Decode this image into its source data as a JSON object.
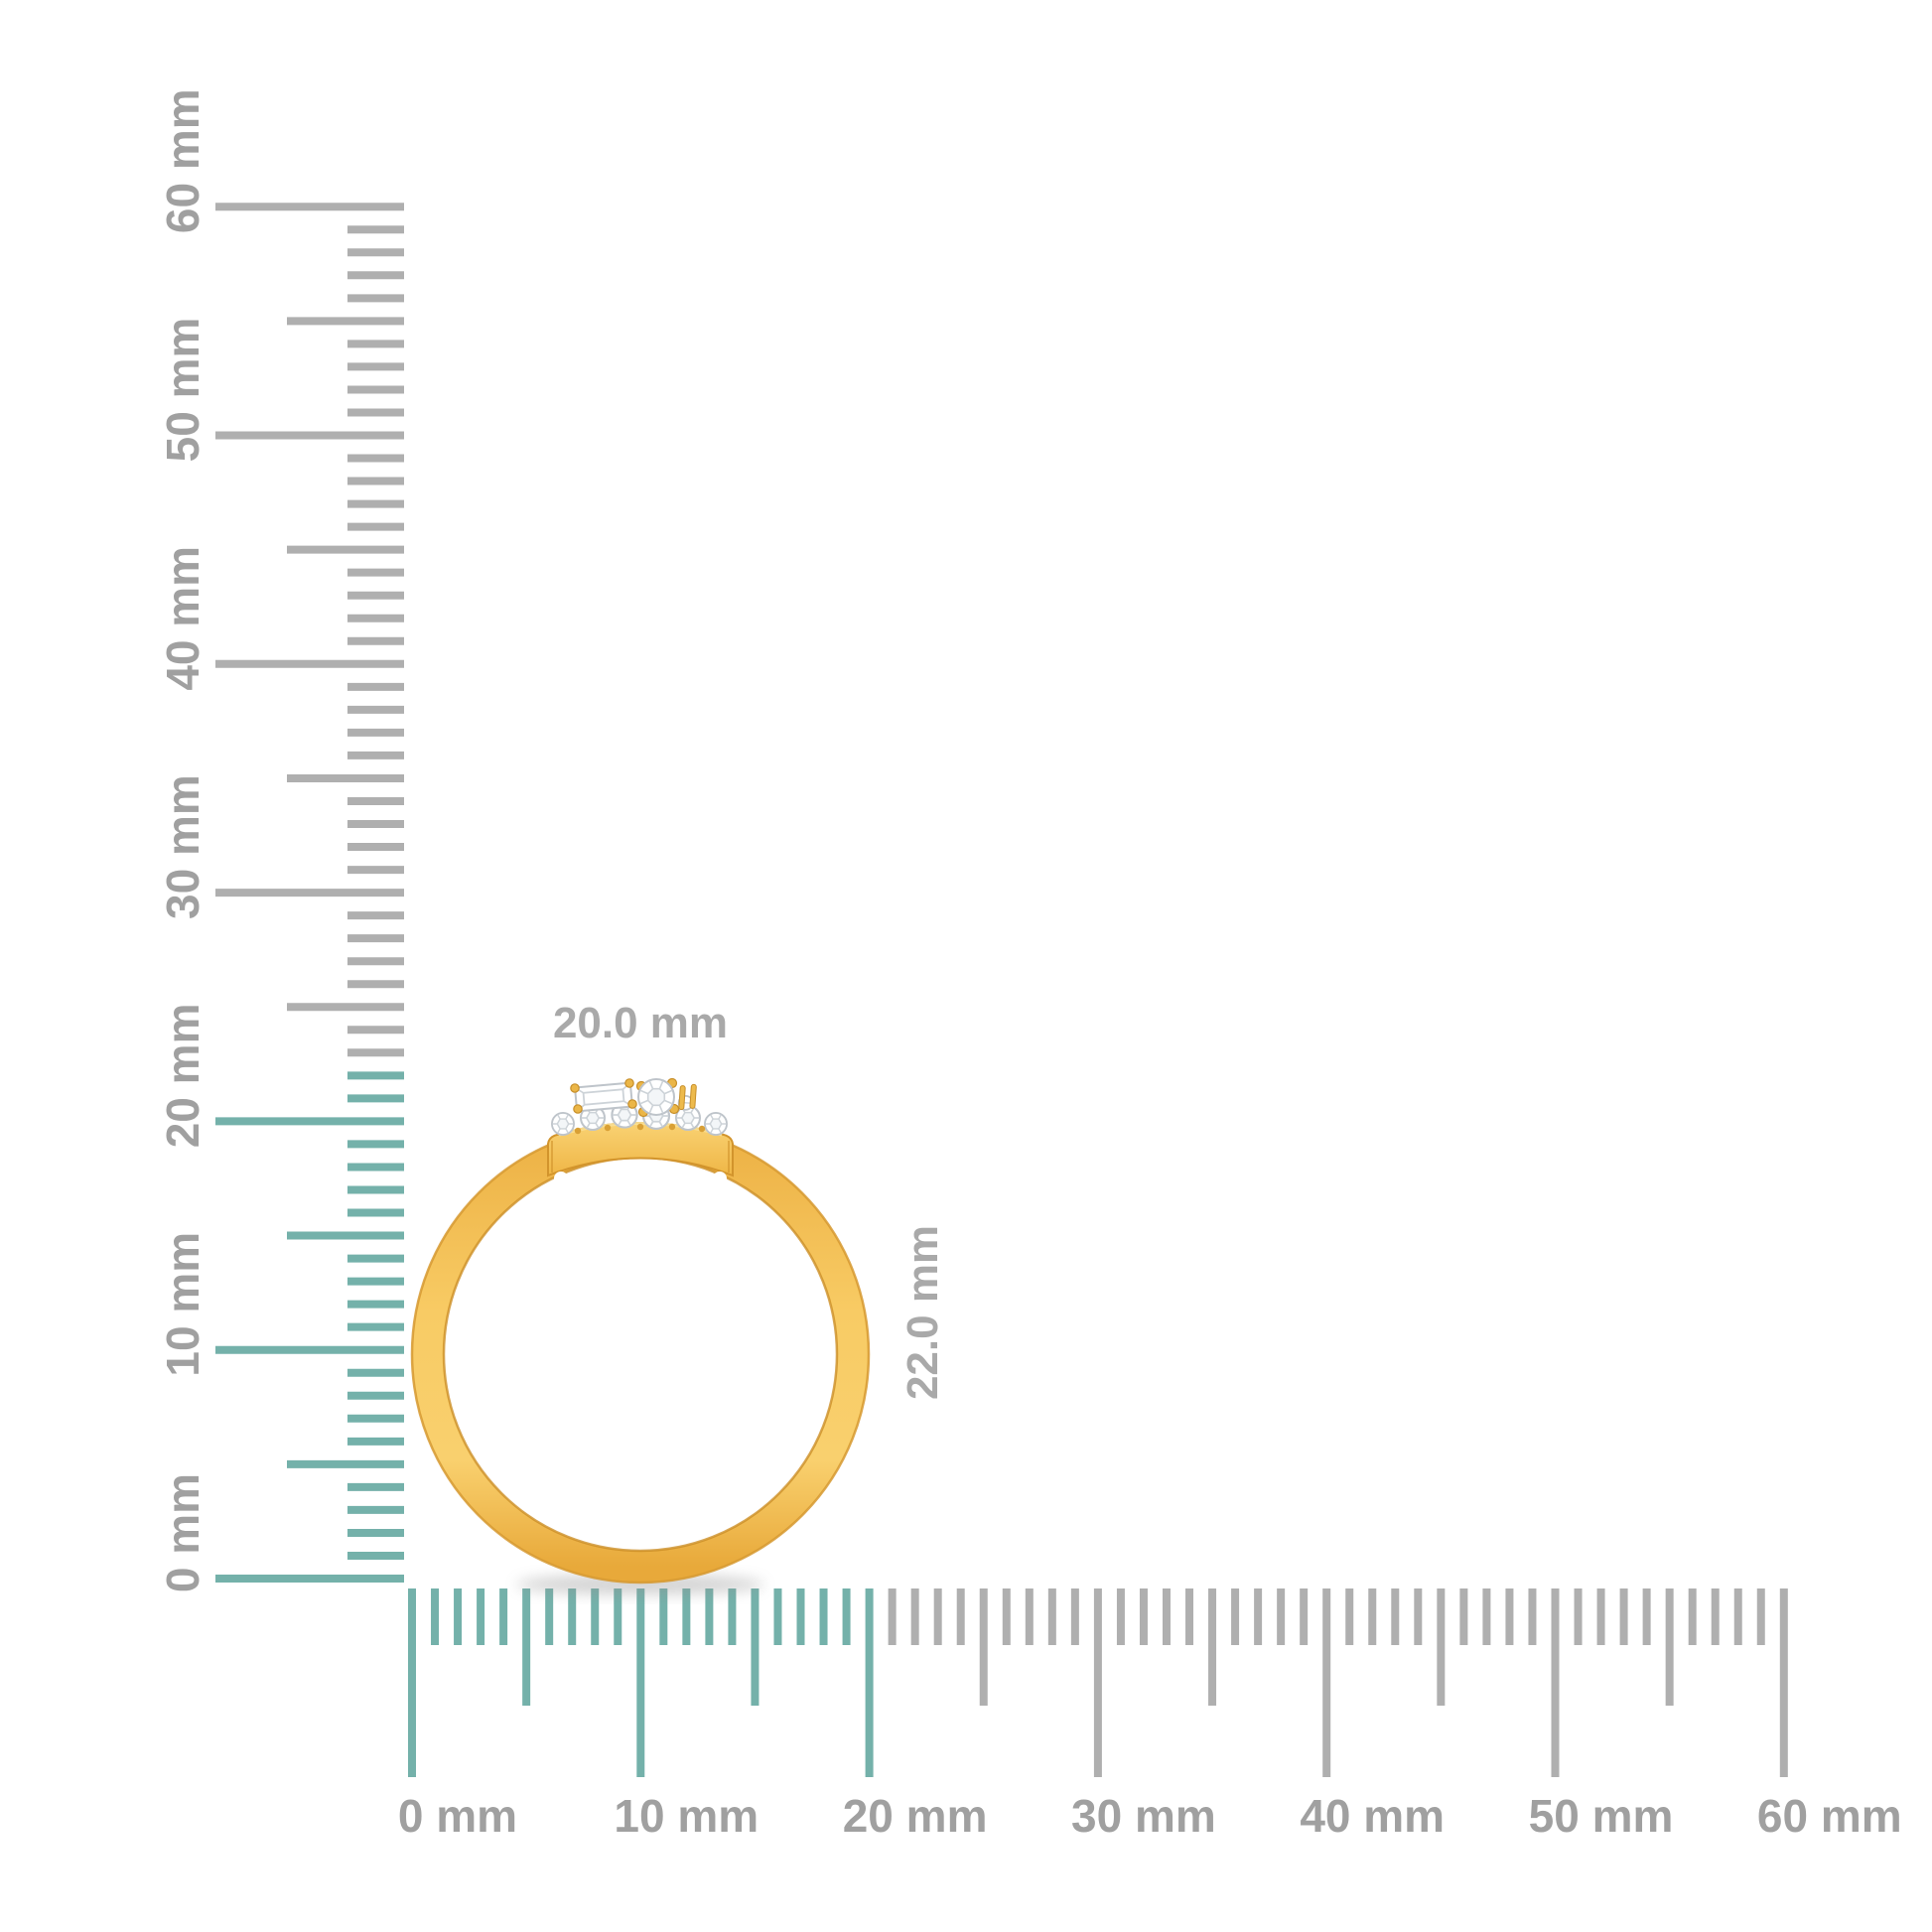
{
  "image_type": "jewelry-product-dimension-render",
  "background": "#ffffff",
  "dimensions": {
    "width_label": "20.0 mm",
    "height_label": "22.0 mm"
  },
  "rulers": {
    "unit": "mm",
    "horizontal": {
      "min_mm": 0,
      "max_mm": 60,
      "minor_step_mm": 1,
      "medium_step_mm": 5,
      "major_step_mm": 10,
      "highlight_to_mm": 20,
      "labels": [
        "0 mm",
        "10 mm",
        "20 mm",
        "30 mm",
        "40 mm",
        "50 mm",
        "60 mm"
      ]
    },
    "vertical": {
      "min_mm": 0,
      "max_mm": 60,
      "minor_step_mm": 1,
      "medium_step_mm": 5,
      "major_step_mm": 10,
      "highlight_to_mm": 22,
      "labels": [
        "0 mm",
        "10 mm",
        "20 mm",
        "30 mm",
        "40 mm",
        "50 mm",
        "60 mm"
      ]
    },
    "colors": {
      "highlight_tick": "#74B1AA",
      "tick": "#AFAFAF",
      "label": "#A0A0A0"
    }
  },
  "ring": {
    "description": "yellow gold band with diamond cluster head",
    "stones": {
      "baguette_count": 1,
      "center_round_count": 1,
      "accent_round_count": 6
    },
    "colors": {
      "gold": "#F8CB64",
      "gold_dark_edge": "#D69930",
      "gold_highlight": "#FBE197",
      "diamond_outline": "#BEC4CA",
      "dimension_label": "#A9A9A9"
    }
  }
}
